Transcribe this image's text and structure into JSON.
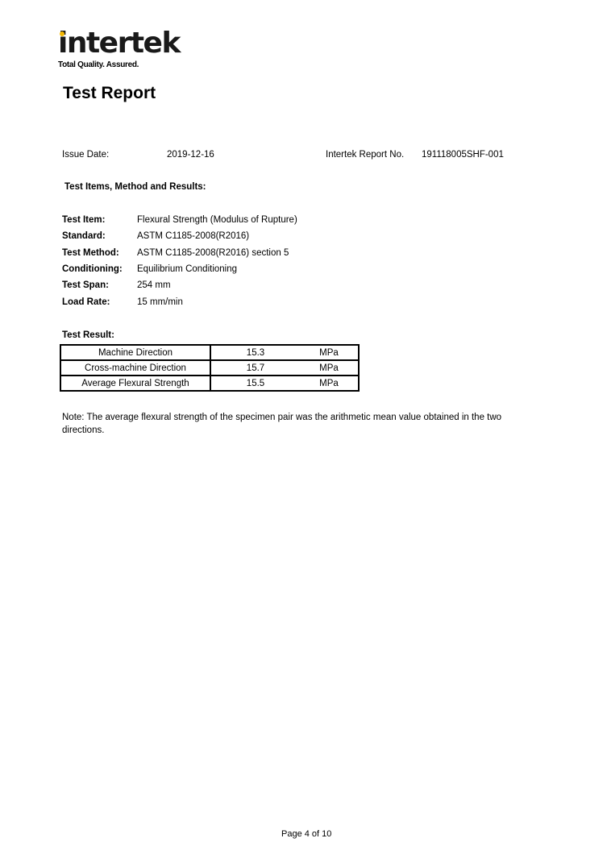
{
  "logo": {
    "word": "intertek",
    "tagline": "Total Quality. Assured.",
    "accent": "#f5b800"
  },
  "title": "Test Report",
  "issue": {
    "label": "Issue Date:",
    "value": "2019-12-16",
    "report_label": "Intertek Report No.",
    "report_value": "191118005SHF-001"
  },
  "section_heading": "Test Items, Method and Results:",
  "fields": [
    {
      "label": "Test Item:",
      "value": "Flexural Strength (Modulus of Rupture)"
    },
    {
      "label": "Standard:",
      "value": "ASTM C1185-2008(R2016)"
    },
    {
      "label": "Test Method:",
      "value": "ASTM C1185-2008(R2016) section 5"
    },
    {
      "label": "Conditioning:",
      "value": "Equilibrium Conditioning"
    },
    {
      "label": "Test Span:",
      "value": "254 mm"
    },
    {
      "label": "Load Rate:",
      "value": "15 mm/min"
    }
  ],
  "result_heading": "Test Result:",
  "results": [
    {
      "name": "Machine Direction",
      "value": "15.3",
      "unit": "MPa"
    },
    {
      "name": "Cross-machine Direction",
      "value": "15.7",
      "unit": "MPa"
    },
    {
      "name": "Average Flexural Strength",
      "value": "15.5",
      "unit": "MPa"
    }
  ],
  "note_line1": "Note: The average flexural strength of the specimen pair was the arithmetic mean value obtained in the two",
  "note_line2": "directions.",
  "footer": "Page 4 of 10"
}
